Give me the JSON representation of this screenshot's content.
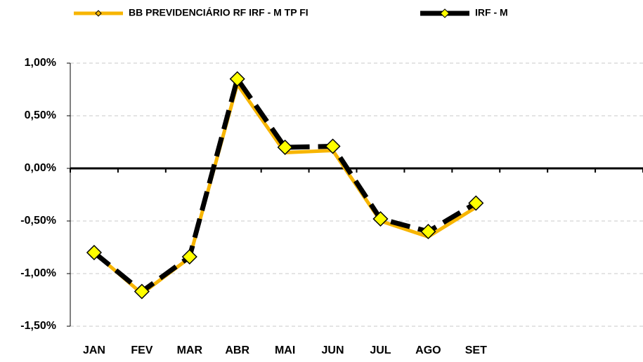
{
  "chart_data": {
    "type": "line",
    "categories": [
      "JAN",
      "FEV",
      "MAR",
      "ABR",
      "MAI",
      "JUN",
      "JUL",
      "AGO",
      "SET",
      null,
      null,
      null
    ],
    "series": [
      {
        "name": "BB PREVIDENCIÁRIO RF IRF - M TP FI",
        "color": "#f7b500",
        "dashed": false,
        "marker": false,
        "values": [
          -0.8,
          -1.19,
          -0.85,
          0.8,
          0.15,
          0.17,
          -0.5,
          -0.65,
          -0.37,
          null,
          null,
          null
        ]
      },
      {
        "name": "IRF - M",
        "color": "#000000",
        "dashed": true,
        "marker": true,
        "marker_color": "#ffff00",
        "values": [
          -0.8,
          -1.17,
          -0.84,
          0.85,
          0.2,
          0.21,
          -0.48,
          -0.6,
          -0.33,
          null,
          null,
          null
        ]
      }
    ],
    "ylim": [
      -1.5,
      1.0
    ],
    "yticks": [
      {
        "value": -1.5,
        "label": "-1,50%"
      },
      {
        "value": -1.0,
        "label": "-1,00%"
      },
      {
        "value": -0.5,
        "label": "-0,50%"
      },
      {
        "value": 0,
        "label": "0,00%"
      },
      {
        "value": 0.5,
        "label": "0,50%"
      },
      {
        "value": 1.0,
        "label": "1,00%"
      }
    ],
    "grid": true
  }
}
